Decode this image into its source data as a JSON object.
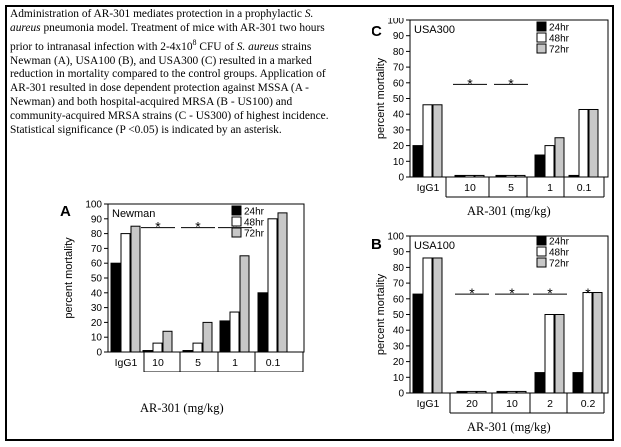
{
  "caption": {
    "p1": "Administration of AR-301 mediates protection in a prophylactic ",
    "organism_italic": "S. aureus",
    "p2": " pneumonia model. Treatment of mice with AR-301 two hours prior to intranasal infection with 2-4x10",
    "superscript": "8",
    "p3": " CFU of ",
    "organism_italic_2": "S. aureus",
    "p4": " strains Newman (A), USA100 (B), and USA300 (C) resulted in a marked reduction in mortality compared to the control groups. Application of AR-301 resulted in dose dependent protection against MSSA (A - Newman) and both hospital-acquired MRSA (B - US100) and community-acquired MRSA strains (C - US300) of highest incidence. Statistical significance (P <0.05) is indicated by an asterisk."
  },
  "colors": {
    "h24": "#000000",
    "h48": "#ffffff",
    "h72": "#c8c8c8"
  },
  "chart_data": [
    {
      "id": "A",
      "type": "bar",
      "panel_letter": "A",
      "title": "Newman",
      "ylabel": "percent mortality",
      "xlabel": "AR-301 (mg/kg)",
      "ylim": [
        0,
        100
      ],
      "yticks": [
        0,
        10,
        20,
        30,
        40,
        50,
        60,
        70,
        80,
        90,
        100
      ],
      "categories": [
        "IgG1",
        "10",
        "5",
        "1",
        "0.1"
      ],
      "legend": [
        "24hr",
        "48hr",
        "72hr"
      ],
      "legend_position": "top-right",
      "series": [
        {
          "name": "24hr",
          "values": [
            60,
            1,
            1,
            21,
            40
          ]
        },
        {
          "name": "48hr",
          "values": [
            80,
            6,
            6,
            27,
            90
          ]
        },
        {
          "name": "72hr",
          "values": [
            85,
            14,
            20,
            65,
            94
          ]
        }
      ],
      "significance_marker": "*"
    },
    {
      "id": "C",
      "type": "bar",
      "panel_letter": "C",
      "title": "USA300",
      "ylabel": "percent mortality",
      "xlabel": "AR-301 (mg/kg)",
      "ylim": [
        0,
        100
      ],
      "yticks": [
        0,
        10,
        20,
        30,
        40,
        50,
        60,
        70,
        80,
        90,
        100
      ],
      "categories": [
        "IgG1",
        "10",
        "5",
        "1",
        "0.1"
      ],
      "legend": [
        "24hr",
        "48hr",
        "72hr"
      ],
      "legend_position": "top-right",
      "series": [
        {
          "name": "24hr",
          "values": [
            20,
            1,
            1,
            14,
            1
          ]
        },
        {
          "name": "48hr",
          "values": [
            46,
            1,
            1,
            20,
            43
          ]
        },
        {
          "name": "72hr",
          "values": [
            46,
            1,
            1,
            25,
            43
          ]
        }
      ],
      "significance_marker": "*"
    },
    {
      "id": "B",
      "type": "bar",
      "panel_letter": "B",
      "title": "USA100",
      "ylabel": "percent mortality",
      "xlabel": "AR-301 (mg/kg)",
      "ylim": [
        0,
        100
      ],
      "yticks": [
        0,
        10,
        20,
        30,
        40,
        50,
        60,
        70,
        80,
        90,
        100
      ],
      "categories": [
        "IgG1",
        "20",
        "10",
        "2",
        "0.2"
      ],
      "legend": [
        "24hr",
        "48hr",
        "72hr"
      ],
      "legend_position": "top-right",
      "series": [
        {
          "name": "24hr",
          "values": [
            63,
            1,
            1,
            13,
            13
          ]
        },
        {
          "name": "48hr",
          "values": [
            86,
            1,
            1,
            50,
            64
          ]
        },
        {
          "name": "72hr",
          "values": [
            86,
            1,
            1,
            50,
            64
          ]
        }
      ],
      "significance_marker": "*"
    }
  ]
}
